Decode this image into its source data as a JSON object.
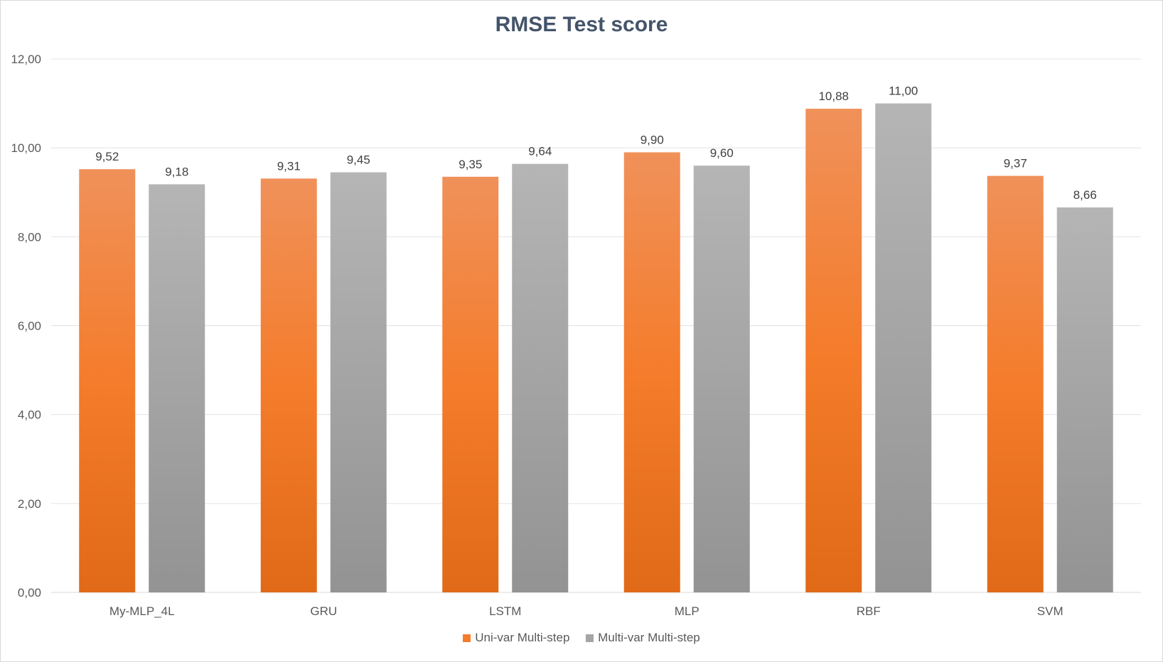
{
  "chart_data": {
    "type": "bar",
    "title": "RMSE Test score",
    "categories": [
      "My-MLP_4L",
      "GRU",
      "LSTM",
      "MLP",
      "RBF",
      "SVM"
    ],
    "series": [
      {
        "name": "Uni-var Multi-step",
        "values": [
          9.52,
          9.31,
          9.35,
          9.9,
          10.88,
          9.37
        ],
        "labels": [
          "9,52",
          "9,31",
          "9,35",
          "9,90",
          "10,88",
          "9,37"
        ],
        "color": "#ed7d31"
      },
      {
        "name": "Multi-var Multi-step",
        "values": [
          9.18,
          9.45,
          9.64,
          9.6,
          11.0,
          8.66
        ],
        "labels": [
          "9,18",
          "9,45",
          "9,64",
          "9,60",
          "11,00",
          "8,66"
        ],
        "color": "#a5a5a5"
      }
    ],
    "yticks": [
      "0,00",
      "2,00",
      "4,00",
      "6,00",
      "8,00",
      "10,00",
      "12,00"
    ],
    "ylim": [
      0,
      12
    ],
    "grid": true,
    "legend_position": "bottom"
  }
}
